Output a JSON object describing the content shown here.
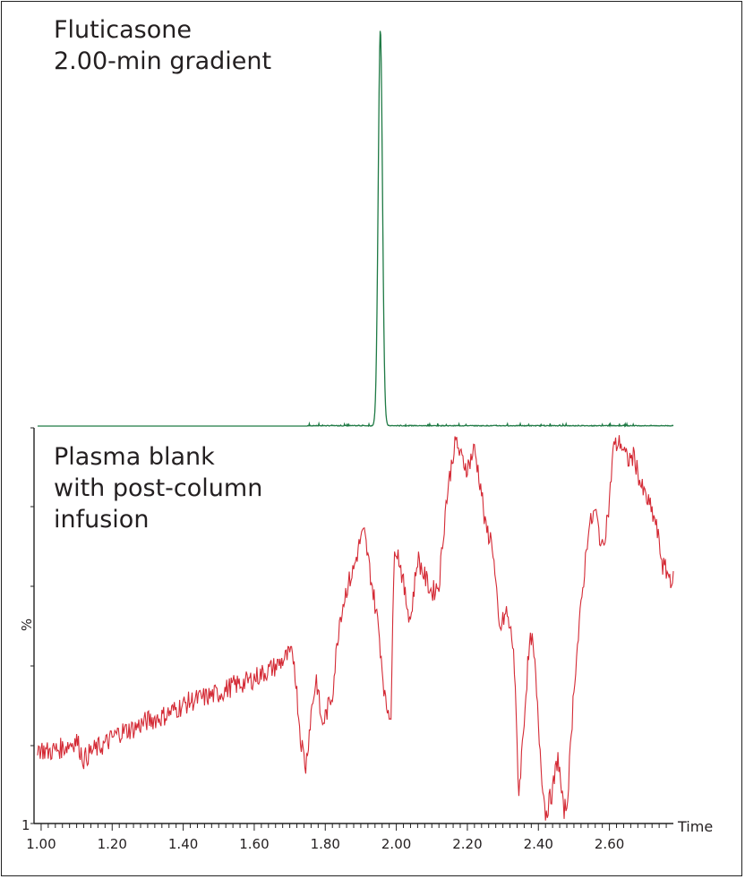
{
  "chart_data": {
    "type": "line",
    "x_unit_label": "Time",
    "y_unit_label": "%",
    "y_min_label": "1",
    "xlim": [
      0.98,
      2.78
    ],
    "x_ticks": [
      "1.00",
      "1.20",
      "1.40",
      "1.60",
      "1.80",
      "2.00",
      "2.20",
      "2.40",
      "2.60"
    ],
    "x_tick_values": [
      1.0,
      1.2,
      1.4,
      1.6,
      1.8,
      2.0,
      2.2,
      2.4,
      2.6
    ],
    "x_range": [
      0.99,
      2.78
    ],
    "panels": [
      {
        "title_lines": [
          "Fluticasone",
          "2.00-min gradient"
        ],
        "series": [
          {
            "color": "#1f7a45",
            "shape": "peak",
            "baseline": 1,
            "peak_time": 1.955,
            "peak_height": 100,
            "peak_width": 0.006
          }
        ]
      },
      {
        "title_lines": [
          "Plasma blank",
          "with post-column",
          "infusion"
        ],
        "series": [
          {
            "color": "#d42a35",
            "ylim": [
              0,
              100
            ],
            "x": [
              0.99,
              1.02,
              1.06,
              1.1,
              1.12,
              1.14,
              1.18,
              1.22,
              1.26,
              1.3,
              1.34,
              1.38,
              1.42,
              1.46,
              1.5,
              1.54,
              1.58,
              1.62,
              1.66,
              1.7,
              1.712,
              1.73,
              1.745,
              1.76,
              1.775,
              1.79,
              1.8,
              1.82,
              1.84,
              1.86,
              1.88,
              1.9,
              1.91,
              1.93,
              1.95,
              1.97,
              1.985,
              1.995,
              2.01,
              2.025,
              2.04,
              2.06,
              2.08,
              2.1,
              2.12,
              2.14,
              2.16,
              2.17,
              2.18,
              2.2,
              2.22,
              2.24,
              2.25,
              2.27,
              2.29,
              2.31,
              2.33,
              2.345,
              2.355,
              2.37,
              2.38,
              2.39,
              2.4,
              2.41,
              2.42,
              2.44,
              2.455,
              2.47,
              2.48,
              2.49,
              2.5,
              2.52,
              2.54,
              2.56,
              2.58,
              2.6,
              2.61,
              2.63,
              2.65,
              2.67,
              2.69,
              2.71,
              2.73,
              2.75,
              2.77,
              2.78
            ],
            "y": [
              19,
              18,
              19,
              21,
              16,
              18,
              20,
              23,
              24,
              26,
              27,
              29,
              31,
              32,
              33,
              35,
              36,
              38,
              40,
              43,
              42,
              22,
              14,
              28,
              37,
              25,
              27,
              33,
              52,
              60,
              65,
              73,
              74,
              62,
              50,
              30,
              28,
              72,
              67,
              58,
              52,
              68,
              63,
              59,
              61,
              82,
              95,
              98,
              94,
              91,
              96,
              85,
              76,
              72,
              49,
              54,
              45,
              7,
              20,
              40,
              48,
              40,
              25,
              12,
              2,
              8,
              17,
              3,
              4,
              18,
              35,
              55,
              75,
              80,
              70,
              82,
              96,
              98,
              93,
              94,
              86,
              82,
              77,
              66,
              63,
              62
            ]
          }
        ]
      }
    ]
  }
}
